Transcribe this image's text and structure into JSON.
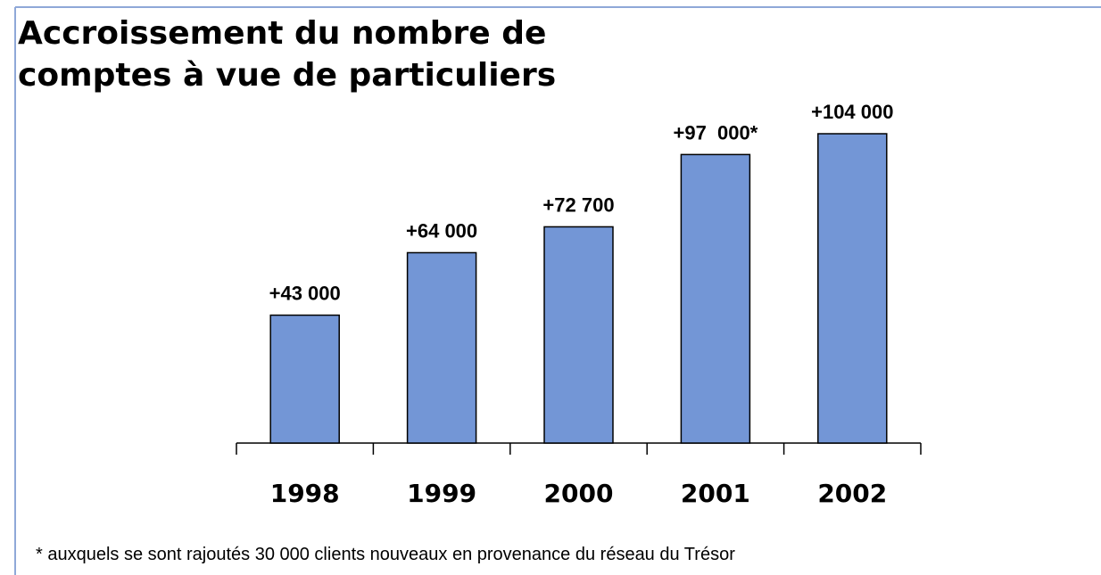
{
  "chart_data": {
    "type": "bar",
    "title": "Accroissement du nombre de\ncomptes à vue de particuliers",
    "categories": [
      "1998",
      "1999",
      "2000",
      "2001",
      "2002"
    ],
    "values": [
      43000,
      64000,
      72700,
      97000,
      104000
    ],
    "value_labels": [
      "+43 000",
      "+64 000",
      "+72 700",
      "+97  000*",
      "+104 000"
    ],
    "color": "#7396d6",
    "footnote": "* auxquels se sont rajoutés 30 000 clients nouveaux en provenance du réseau du Trésor"
  }
}
